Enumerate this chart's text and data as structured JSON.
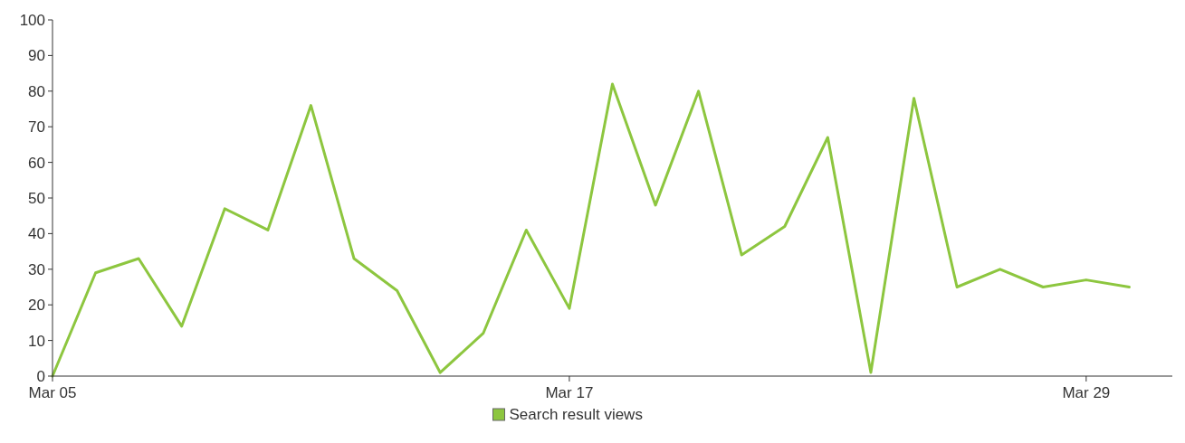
{
  "chart_data": {
    "type": "line",
    "x": [
      "--03-05",
      "--03-06",
      "--03-07",
      "--03-08",
      "--03-09",
      "--03-10",
      "--03-11",
      "--03-12",
      "--03-13",
      "--03-14",
      "--03-15",
      "--03-16",
      "--03-17",
      "--03-18",
      "--03-19",
      "--03-20",
      "--03-21",
      "--03-22",
      "--03-23",
      "--03-24",
      "--03-25",
      "--03-26",
      "--03-27",
      "--03-28",
      "--03-29",
      "--03-30"
    ],
    "series": [
      {
        "name": "Search result views",
        "color": "#8dc63f",
        "values": [
          0,
          29,
          33,
          14,
          47,
          41,
          76,
          33,
          24,
          1,
          12,
          41,
          19,
          82,
          48,
          80,
          34,
          42,
          67,
          1,
          78,
          25,
          30,
          25,
          27,
          25
        ]
      }
    ],
    "xlim": [
      "--03-05",
      "--03-31"
    ],
    "xticks": [
      {
        "value": "--03-05",
        "label": "Mar 05"
      },
      {
        "value": "--03-17",
        "label": "Mar 17"
      },
      {
        "value": "--03-29",
        "label": "Mar 29"
      }
    ],
    "ylim": [
      0,
      100
    ],
    "yticks": [
      0,
      10,
      20,
      30,
      40,
      50,
      60,
      70,
      80,
      90,
      100
    ],
    "grid": false,
    "legend": "bottom",
    "marker": "none",
    "line_style": "solid"
  }
}
